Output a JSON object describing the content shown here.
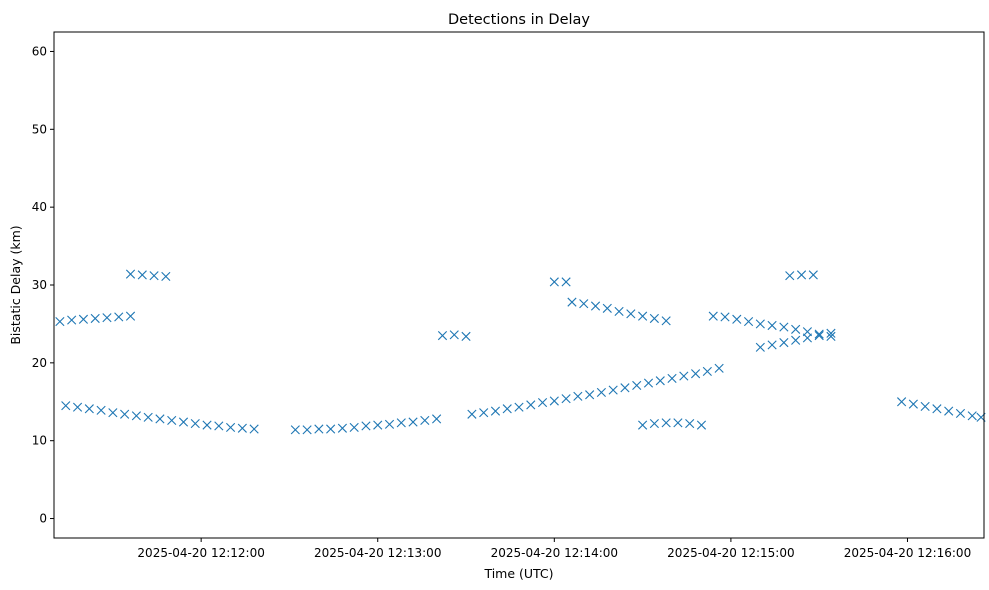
{
  "chart_data": {
    "type": "scatter",
    "title": "Detections in Delay",
    "xlabel": "Time (UTC)",
    "ylabel": "Bistatic Delay (km)",
    "marker": "x",
    "color": "#1f77b4",
    "xlim": [
      "2025-04-20 12:11:10",
      "2025-04-20 12:16:26"
    ],
    "ylim": [
      -2.5,
      62.5
    ],
    "x_ticks": [
      "2025-04-20 12:12:00",
      "2025-04-20 12:13:00",
      "2025-04-20 12:14:00",
      "2025-04-20 12:15:00",
      "2025-04-20 12:16:00"
    ],
    "y_ticks": [
      0,
      10,
      20,
      30,
      40,
      50,
      60
    ],
    "grid": false,
    "legend": "none",
    "series": [
      {
        "points": [
          [
            "2025-04-20 12:11:14",
            14.5
          ],
          [
            "2025-04-20 12:11:18",
            14.3
          ],
          [
            "2025-04-20 12:11:22",
            14.1
          ],
          [
            "2025-04-20 12:11:26",
            13.9
          ],
          [
            "2025-04-20 12:11:30",
            13.6
          ],
          [
            "2025-04-20 12:11:34",
            13.4
          ],
          [
            "2025-04-20 12:11:38",
            13.2
          ],
          [
            "2025-04-20 12:11:42",
            13.0
          ],
          [
            "2025-04-20 12:11:46",
            12.8
          ],
          [
            "2025-04-20 12:11:50",
            12.6
          ],
          [
            "2025-04-20 12:11:54",
            12.4
          ],
          [
            "2025-04-20 12:11:58",
            12.2
          ],
          [
            "2025-04-20 12:12:02",
            12.0
          ],
          [
            "2025-04-20 12:12:06",
            11.9
          ],
          [
            "2025-04-20 12:12:10",
            11.7
          ],
          [
            "2025-04-20 12:12:14",
            11.6
          ],
          [
            "2025-04-20 12:12:18",
            11.5
          ],
          [
            "2025-04-20 12:12:32",
            11.4
          ],
          [
            "2025-04-20 12:12:36",
            11.4
          ],
          [
            "2025-04-20 12:12:40",
            11.5
          ],
          [
            "2025-04-20 12:12:44",
            11.5
          ],
          [
            "2025-04-20 12:12:48",
            11.6
          ],
          [
            "2025-04-20 12:12:52",
            11.7
          ],
          [
            "2025-04-20 12:12:56",
            11.9
          ],
          [
            "2025-04-20 12:13:00",
            12.0
          ],
          [
            "2025-04-20 12:13:04",
            12.1
          ],
          [
            "2025-04-20 12:13:08",
            12.3
          ],
          [
            "2025-04-20 12:13:12",
            12.4
          ],
          [
            "2025-04-20 12:13:16",
            12.6
          ],
          [
            "2025-04-20 12:13:20",
            12.8
          ],
          [
            "2025-04-20 12:13:32",
            13.4
          ],
          [
            "2025-04-20 12:13:36",
            13.6
          ],
          [
            "2025-04-20 12:13:40",
            13.8
          ],
          [
            "2025-04-20 12:13:44",
            14.1
          ],
          [
            "2025-04-20 12:13:48",
            14.3
          ],
          [
            "2025-04-20 12:13:52",
            14.6
          ],
          [
            "2025-04-20 12:13:56",
            14.9
          ],
          [
            "2025-04-20 12:14:00",
            15.1
          ],
          [
            "2025-04-20 12:14:04",
            15.4
          ],
          [
            "2025-04-20 12:14:08",
            15.7
          ],
          [
            "2025-04-20 12:14:12",
            15.9
          ],
          [
            "2025-04-20 12:14:16",
            16.2
          ],
          [
            "2025-04-20 12:14:20",
            16.5
          ],
          [
            "2025-04-20 12:14:24",
            16.8
          ],
          [
            "2025-04-20 12:14:28",
            17.1
          ],
          [
            "2025-04-20 12:14:32",
            17.4
          ],
          [
            "2025-04-20 12:14:36",
            17.7
          ],
          [
            "2025-04-20 12:14:40",
            18.0
          ],
          [
            "2025-04-20 12:14:44",
            18.3
          ],
          [
            "2025-04-20 12:14:48",
            18.6
          ],
          [
            "2025-04-20 12:14:52",
            18.9
          ],
          [
            "2025-04-20 12:14:56",
            19.3
          ],
          [
            "2025-04-20 12:14:30",
            12.0
          ],
          [
            "2025-04-20 12:14:34",
            12.2
          ],
          [
            "2025-04-20 12:14:38",
            12.3
          ],
          [
            "2025-04-20 12:14:42",
            12.3
          ],
          [
            "2025-04-20 12:14:46",
            12.2
          ],
          [
            "2025-04-20 12:14:50",
            12.0
          ],
          [
            "2025-04-20 12:15:10",
            22.0
          ],
          [
            "2025-04-20 12:15:14",
            22.3
          ],
          [
            "2025-04-20 12:15:18",
            22.6
          ],
          [
            "2025-04-20 12:15:22",
            22.9
          ],
          [
            "2025-04-20 12:15:26",
            23.2
          ],
          [
            "2025-04-20 12:15:30",
            23.5
          ],
          [
            "2025-04-20 12:15:34",
            23.8
          ],
          [
            "2025-04-20 12:15:58",
            15.0
          ],
          [
            "2025-04-20 12:16:02",
            14.7
          ],
          [
            "2025-04-20 12:16:06",
            14.4
          ],
          [
            "2025-04-20 12:16:10",
            14.1
          ],
          [
            "2025-04-20 12:16:14",
            13.8
          ],
          [
            "2025-04-20 12:16:18",
            13.5
          ],
          [
            "2025-04-20 12:16:22",
            13.2
          ],
          [
            "2025-04-20 12:16:25",
            13.0
          ],
          [
            "2025-04-20 12:11:12",
            25.3
          ],
          [
            "2025-04-20 12:11:16",
            25.5
          ],
          [
            "2025-04-20 12:11:20",
            25.6
          ],
          [
            "2025-04-20 12:11:24",
            25.7
          ],
          [
            "2025-04-20 12:11:28",
            25.8
          ],
          [
            "2025-04-20 12:11:32",
            25.9
          ],
          [
            "2025-04-20 12:11:36",
            26.0
          ],
          [
            "2025-04-20 12:11:36",
            31.4
          ],
          [
            "2025-04-20 12:11:40",
            31.3
          ],
          [
            "2025-04-20 12:11:44",
            31.2
          ],
          [
            "2025-04-20 12:11:48",
            31.1
          ],
          [
            "2025-04-20 12:13:22",
            23.5
          ],
          [
            "2025-04-20 12:13:26",
            23.6
          ],
          [
            "2025-04-20 12:13:30",
            23.4
          ],
          [
            "2025-04-20 12:14:00",
            30.4
          ],
          [
            "2025-04-20 12:14:04",
            30.4
          ],
          [
            "2025-04-20 12:14:06",
            27.8
          ],
          [
            "2025-04-20 12:14:10",
            27.6
          ],
          [
            "2025-04-20 12:14:14",
            27.3
          ],
          [
            "2025-04-20 12:14:18",
            27.0
          ],
          [
            "2025-04-20 12:14:22",
            26.6
          ],
          [
            "2025-04-20 12:14:26",
            26.3
          ],
          [
            "2025-04-20 12:14:30",
            26.0
          ],
          [
            "2025-04-20 12:14:34",
            25.7
          ],
          [
            "2025-04-20 12:14:38",
            25.4
          ],
          [
            "2025-04-20 12:14:54",
            26.0
          ],
          [
            "2025-04-20 12:14:58",
            25.9
          ],
          [
            "2025-04-20 12:15:02",
            25.6
          ],
          [
            "2025-04-20 12:15:06",
            25.3
          ],
          [
            "2025-04-20 12:15:10",
            25.0
          ],
          [
            "2025-04-20 12:15:14",
            24.8
          ],
          [
            "2025-04-20 12:15:18",
            24.6
          ],
          [
            "2025-04-20 12:15:22",
            24.3
          ],
          [
            "2025-04-20 12:15:26",
            24.0
          ],
          [
            "2025-04-20 12:15:30",
            23.7
          ],
          [
            "2025-04-20 12:15:34",
            23.4
          ],
          [
            "2025-04-20 12:15:20",
            31.2
          ],
          [
            "2025-04-20 12:15:24",
            31.3
          ],
          [
            "2025-04-20 12:15:28",
            31.3
          ]
        ]
      }
    ]
  }
}
